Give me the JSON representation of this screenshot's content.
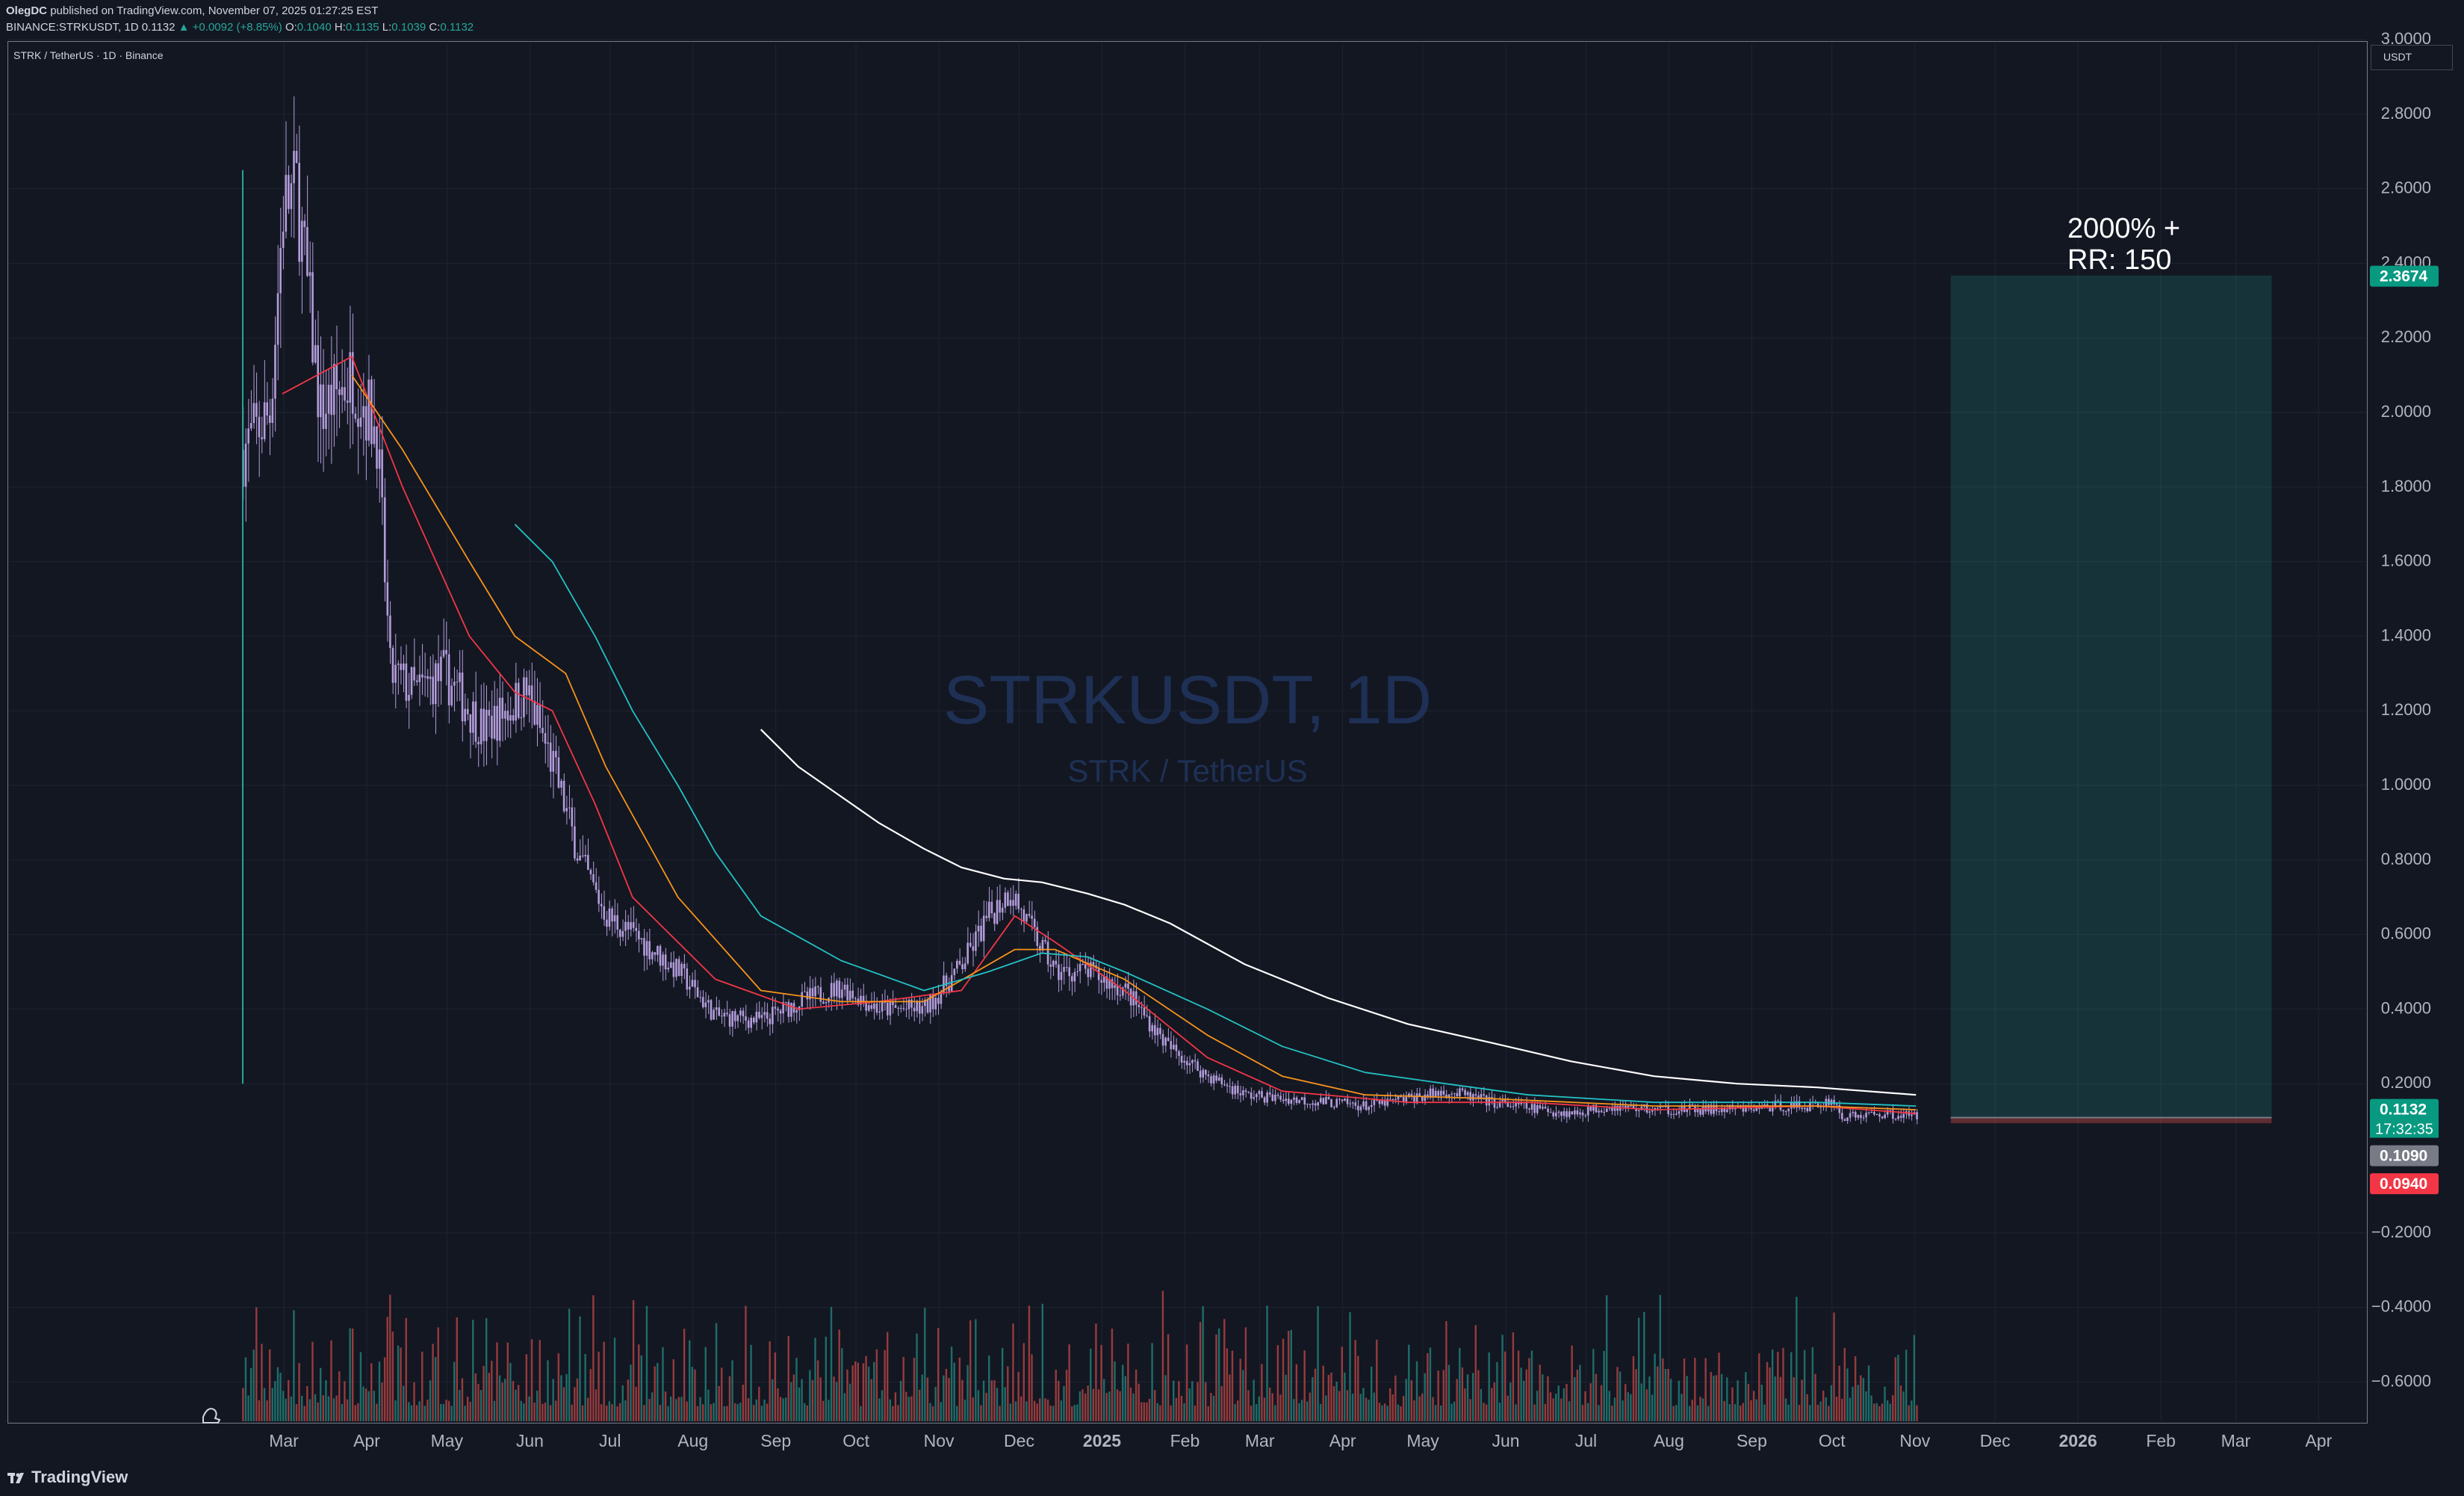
{
  "header": {
    "author": "OlegDC",
    "published_text": "published on TradingView.com, November 07, 2025 01:27:25 EST",
    "symbol": "BINANCE:STRKUSDT, 1D",
    "last": "0.1132",
    "change": "▲ +0.0092 (+8.85%)",
    "o_label": "O:",
    "o": "0.1040",
    "h_label": "H:",
    "h": "0.1135",
    "l_label": "L:",
    "l": "0.1039",
    "c_label": "C:",
    "c": "0.1132"
  },
  "legend_title": "STRK / TetherUS · 1D · Binance",
  "currency": "USDT",
  "watermark": {
    "title": "STRKUSDT, 1D",
    "subtitle": "STRK / TetherUS"
  },
  "annotation": {
    "line1": "2000% +",
    "line2": "RR: 150"
  },
  "footer": {
    "brand": "TradingView"
  },
  "colors": {
    "up": "#26a69a",
    "down": "#ef5350",
    "candle": "#b39ddb",
    "ma_fast": "#f23645",
    "ma_mid": "#f7931a",
    "ma_slow": "#22c1c3",
    "ma_long": "#ffffff",
    "target_zone": "#26a69a"
  },
  "chart_data": {
    "type": "candlestick",
    "yaxis_ticks": [
      "3.0000",
      "2.8000",
      "2.6000",
      "2.4000",
      "2.2000",
      "2.0000",
      "1.8000",
      "1.6000",
      "1.4000",
      "1.2000",
      "1.0000",
      "0.8000",
      "0.6000",
      "0.4000",
      "0.2000",
      "−0.2000",
      "−0.4000",
      "−0.6000"
    ],
    "ylim": [
      -0.6,
      3.0
    ],
    "xaxis_ticks": [
      "Mar",
      "Apr",
      "May",
      "Jun",
      "Jul",
      "Aug",
      "Sep",
      "Oct",
      "Nov",
      "Dec",
      "2025",
      "Feb",
      "Mar",
      "Apr",
      "May",
      "Jun",
      "Jul",
      "Aug",
      "Sep",
      "Oct",
      "Nov",
      "Dec",
      "2026",
      "Feb",
      "Mar",
      "Apr"
    ],
    "price_path": [
      [
        "2024-02-20",
        1.9
      ],
      [
        "2024-03-01",
        2.0
      ],
      [
        "2024-03-06",
        2.55
      ],
      [
        "2024-03-11",
        2.6
      ],
      [
        "2024-03-20",
        2.0
      ],
      [
        "2024-04-01",
        2.1
      ],
      [
        "2024-04-10",
        1.95
      ],
      [
        "2024-04-15",
        1.3
      ],
      [
        "2024-04-25",
        1.25
      ],
      [
        "2024-05-05",
        1.3
      ],
      [
        "2024-05-20",
        1.15
      ],
      [
        "2024-06-05",
        1.25
      ],
      [
        "2024-06-15",
        1.05
      ],
      [
        "2024-06-25",
        0.8
      ],
      [
        "2024-07-05",
        0.65
      ],
      [
        "2024-07-15",
        0.6
      ],
      [
        "2024-08-01",
        0.5
      ],
      [
        "2024-08-15",
        0.38
      ],
      [
        "2024-09-01",
        0.37
      ],
      [
        "2024-09-15",
        0.42
      ],
      [
        "2024-10-01",
        0.46
      ],
      [
        "2024-10-15",
        0.4
      ],
      [
        "2024-11-01",
        0.4
      ],
      [
        "2024-11-15",
        0.52
      ],
      [
        "2024-11-25",
        0.65
      ],
      [
        "2024-12-03",
        0.72
      ],
      [
        "2024-12-10",
        0.62
      ],
      [
        "2024-12-20",
        0.5
      ],
      [
        "2025-01-01",
        0.5
      ],
      [
        "2025-01-15",
        0.45
      ],
      [
        "2025-01-31",
        0.3
      ],
      [
        "2025-02-15",
        0.22
      ],
      [
        "2025-03-01",
        0.17
      ],
      [
        "2025-03-15",
        0.16
      ],
      [
        "2025-04-01",
        0.15
      ],
      [
        "2025-04-15",
        0.14
      ],
      [
        "2025-05-01",
        0.16
      ],
      [
        "2025-05-15",
        0.18
      ],
      [
        "2025-06-01",
        0.15
      ],
      [
        "2025-06-20",
        0.13
      ],
      [
        "2025-07-01",
        0.12
      ],
      [
        "2025-07-15",
        0.14
      ],
      [
        "2025-08-01",
        0.13
      ],
      [
        "2025-08-15",
        0.13
      ],
      [
        "2025-09-01",
        0.13
      ],
      [
        "2025-09-15",
        0.14
      ],
      [
        "2025-10-01",
        0.14
      ],
      [
        "2025-10-06",
        0.16
      ],
      [
        "2025-10-10",
        0.11
      ],
      [
        "2025-10-25",
        0.12
      ],
      [
        "2025-11-07",
        0.1132
      ]
    ],
    "moving_averages": [
      {
        "color_key": "ma_fast",
        "points": [
          [
            "2024-03-06",
            2.05
          ],
          [
            "2024-04-01",
            2.15
          ],
          [
            "2024-04-20",
            1.8
          ],
          [
            "2024-05-15",
            1.4
          ],
          [
            "2024-06-01",
            1.25
          ],
          [
            "2024-06-15",
            1.2
          ],
          [
            "2024-07-01",
            0.95
          ],
          [
            "2024-07-15",
            0.7
          ],
          [
            "2024-08-15",
            0.48
          ],
          [
            "2024-09-15",
            0.4
          ],
          [
            "2024-10-15",
            0.42
          ],
          [
            "2024-11-15",
            0.45
          ],
          [
            "2024-12-05",
            0.65
          ],
          [
            "2024-12-20",
            0.58
          ],
          [
            "2025-01-15",
            0.45
          ],
          [
            "2025-02-15",
            0.27
          ],
          [
            "2025-03-15",
            0.18
          ],
          [
            "2025-05-01",
            0.15
          ],
          [
            "2025-06-15",
            0.15
          ],
          [
            "2025-08-01",
            0.13
          ],
          [
            "2025-10-01",
            0.14
          ],
          [
            "2025-11-07",
            0.12
          ]
        ]
      },
      {
        "color_key": "ma_mid",
        "points": [
          [
            "2024-04-01",
            2.1
          ],
          [
            "2024-04-20",
            1.9
          ],
          [
            "2024-05-15",
            1.6
          ],
          [
            "2024-06-01",
            1.4
          ],
          [
            "2024-06-20",
            1.3
          ],
          [
            "2024-07-05",
            1.05
          ],
          [
            "2024-08-01",
            0.7
          ],
          [
            "2024-09-01",
            0.45
          ],
          [
            "2024-10-01",
            0.42
          ],
          [
            "2024-11-01",
            0.42
          ],
          [
            "2024-12-05",
            0.56
          ],
          [
            "2024-12-20",
            0.56
          ],
          [
            "2025-01-15",
            0.48
          ],
          [
            "2025-02-15",
            0.33
          ],
          [
            "2025-03-15",
            0.22
          ],
          [
            "2025-04-15",
            0.17
          ],
          [
            "2025-06-01",
            0.16
          ],
          [
            "2025-08-01",
            0.14
          ],
          [
            "2025-10-01",
            0.14
          ],
          [
            "2025-11-07",
            0.13
          ]
        ]
      },
      {
        "color_key": "ma_slow",
        "points": [
          [
            "2024-06-01",
            1.7
          ],
          [
            "2024-06-15",
            1.6
          ],
          [
            "2024-07-01",
            1.4
          ],
          [
            "2024-07-15",
            1.2
          ],
          [
            "2024-08-01",
            1.0
          ],
          [
            "2024-08-15",
            0.82
          ],
          [
            "2024-09-01",
            0.65
          ],
          [
            "2024-10-01",
            0.53
          ],
          [
            "2024-11-01",
            0.45
          ],
          [
            "2024-11-25",
            0.5
          ],
          [
            "2024-12-15",
            0.55
          ],
          [
            "2025-01-01",
            0.54
          ],
          [
            "2025-01-15",
            0.5
          ],
          [
            "2025-02-15",
            0.4
          ],
          [
            "2025-03-15",
            0.3
          ],
          [
            "2025-04-15",
            0.23
          ],
          [
            "2025-05-15",
            0.2
          ],
          [
            "2025-06-15",
            0.17
          ],
          [
            "2025-08-01",
            0.15
          ],
          [
            "2025-10-01",
            0.15
          ],
          [
            "2025-11-07",
            0.14
          ]
        ]
      },
      {
        "color_key": "ma_long",
        "points": [
          [
            "2024-09-01",
            1.15
          ],
          [
            "2024-09-15",
            1.05
          ],
          [
            "2024-10-01",
            0.97
          ],
          [
            "2024-10-15",
            0.9
          ],
          [
            "2024-11-01",
            0.83
          ],
          [
            "2024-11-15",
            0.78
          ],
          [
            "2024-12-01",
            0.75
          ],
          [
            "2024-12-15",
            0.74
          ],
          [
            "2025-01-01",
            0.71
          ],
          [
            "2025-01-15",
            0.68
          ],
          [
            "2025-02-01",
            0.63
          ],
          [
            "2025-03-01",
            0.52
          ],
          [
            "2025-04-01",
            0.43
          ],
          [
            "2025-05-01",
            0.36
          ],
          [
            "2025-06-01",
            0.31
          ],
          [
            "2025-07-01",
            0.26
          ],
          [
            "2025-08-01",
            0.22
          ],
          [
            "2025-09-01",
            0.2
          ],
          [
            "2025-10-01",
            0.19
          ],
          [
            "2025-11-07",
            0.17
          ]
        ]
      }
    ],
    "position": {
      "entry": 0.109,
      "target": 2.3674,
      "stop": 0.094,
      "start": "2025-11-20",
      "end": "2026-03-20"
    },
    "price_labels": {
      "target": "2.3674",
      "last": "0.1132",
      "countdown": "17:32:35",
      "entry": "0.1090",
      "stop": "0.0940"
    }
  }
}
